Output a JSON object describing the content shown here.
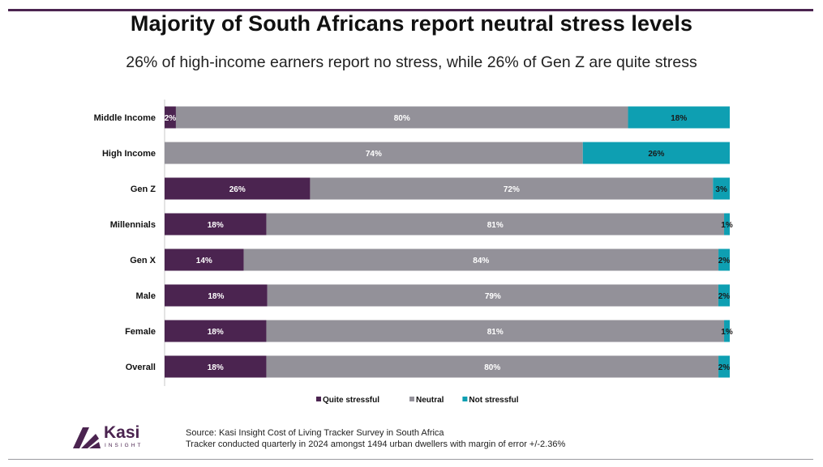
{
  "title": "Majority of South Africans report neutral stress levels",
  "subtitle": "26% of high-income earners report no stress, while 26% of Gen Z are quite stress",
  "chart_data": {
    "type": "bar",
    "orientation": "horizontal",
    "stacked": true,
    "normalized": true,
    "categories": [
      "Middle Income",
      "High Income",
      "Gen Z",
      "Millennials",
      "Gen X",
      "Male",
      "Female",
      "Overall"
    ],
    "series": [
      {
        "name": "Quite stressful",
        "color": "#4b2450",
        "values": [
          2,
          0,
          26,
          18,
          14,
          18,
          18,
          18
        ],
        "labels": [
          "2%",
          "",
          "26%",
          "18%",
          "14%",
          "18%",
          "18%",
          "18%"
        ]
      },
      {
        "name": "Neutral",
        "color": "#939199",
        "values": [
          80,
          74,
          72,
          81,
          84,
          79,
          81,
          80
        ],
        "labels": [
          "80%",
          "74%",
          "72%",
          "81%",
          "84%",
          "79%",
          "81%",
          "80%"
        ]
      },
      {
        "name": "Not stressful",
        "color": "#0e9fb2",
        "values": [
          18,
          26,
          3,
          1,
          2,
          2,
          1,
          2
        ],
        "labels": [
          "18%",
          "26%",
          "3%",
          "1%",
          "2%",
          "2%",
          "1%",
          "2%"
        ]
      }
    ],
    "legend_position": "bottom",
    "grid": false
  },
  "source": {
    "line1": "Source: Kasi Insight Cost of Living Tracker Survey in South Africa",
    "line2": "Tracker conducted quarterly in 2024 amongst 1494 urban dwellers with margin of error +/-2.36%"
  },
  "logo": {
    "name": "Kasi",
    "sub": "INSIGHT"
  }
}
